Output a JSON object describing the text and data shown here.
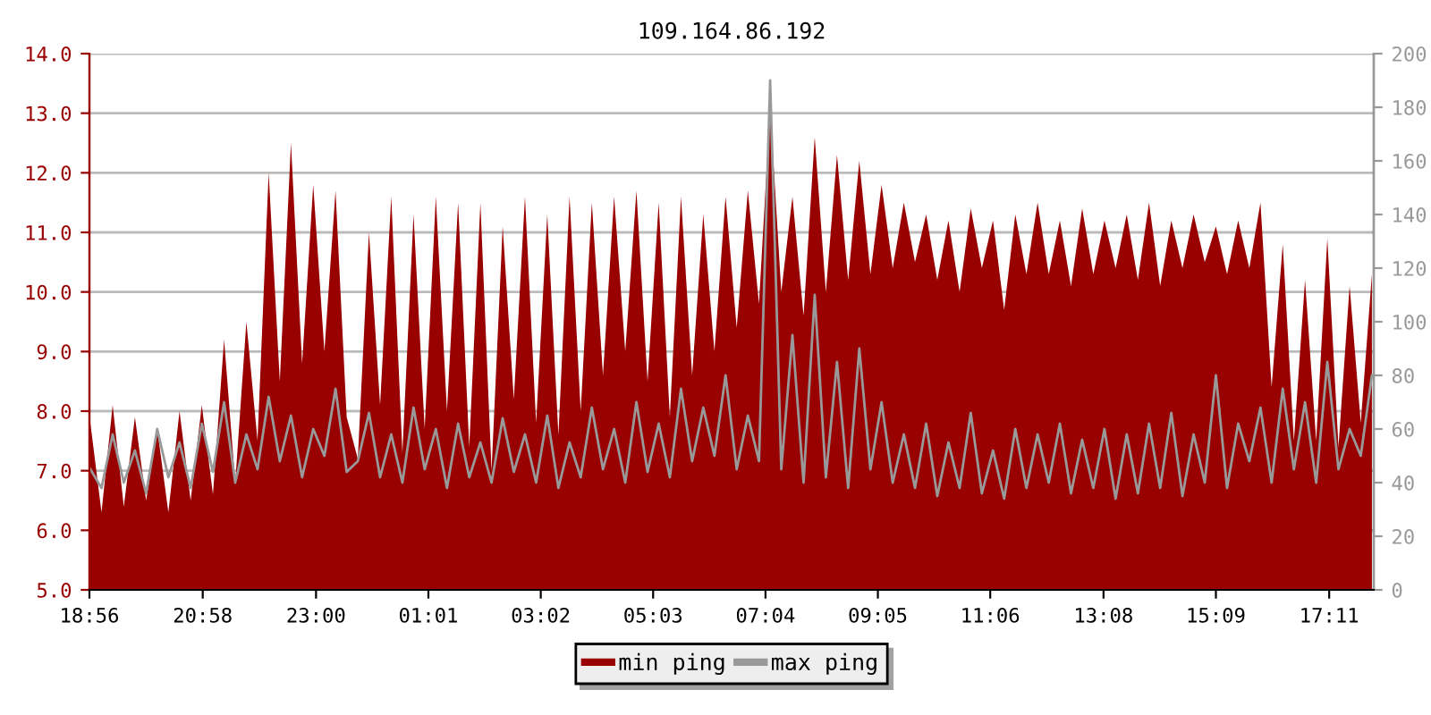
{
  "chart_data": {
    "type": "area",
    "title": "109.164.86.192",
    "x": [
      "2000-01-01T18:57",
      "2000-01-01T19:09",
      "2000-01-01T19:21",
      "2000-01-01T19:33",
      "2000-01-01T19:45",
      "2000-01-01T19:57",
      "2000-01-01T20:09",
      "2000-01-01T20:21",
      "2000-01-01T20:33",
      "2000-01-01T20:45",
      "2000-01-01T20:57",
      "2000-01-01T21:09",
      "2000-01-01T21:21",
      "2000-01-01T21:33",
      "2000-01-01T21:45",
      "2000-01-01T21:57",
      "2000-01-01T22:09",
      "2000-01-01T22:21",
      "2000-01-01T22:33",
      "2000-01-01T22:45",
      "2000-01-01T22:57",
      "2000-01-01T23:09",
      "2000-01-01T23:21",
      "2000-01-01T23:33",
      "2000-01-01T23:45",
      "2000-01-01T23:57",
      "2000-01-02T00:09",
      "2000-01-02T00:21",
      "2000-01-02T00:33",
      "2000-01-02T00:45",
      "2000-01-02T00:57",
      "2000-01-02T01:09",
      "2000-01-02T01:21",
      "2000-01-02T01:33",
      "2000-01-02T01:45",
      "2000-01-02T01:57",
      "2000-01-02T02:09",
      "2000-01-02T02:21",
      "2000-01-02T02:33",
      "2000-01-02T02:45",
      "2000-01-02T02:57",
      "2000-01-02T03:09",
      "2000-01-02T03:21",
      "2000-01-02T03:33",
      "2000-01-02T03:45",
      "2000-01-02T03:57",
      "2000-01-02T04:09",
      "2000-01-02T04:21",
      "2000-01-02T04:33",
      "2000-01-02T04:45",
      "2000-01-02T04:57",
      "2000-01-02T05:09",
      "2000-01-02T05:21",
      "2000-01-02T05:33",
      "2000-01-02T05:45",
      "2000-01-02T05:57",
      "2000-01-02T06:09",
      "2000-01-02T06:21",
      "2000-01-02T06:33",
      "2000-01-02T06:45",
      "2000-01-02T06:57",
      "2000-01-02T07:09",
      "2000-01-02T07:21",
      "2000-01-02T07:33",
      "2000-01-02T07:45",
      "2000-01-02T07:57",
      "2000-01-02T08:09",
      "2000-01-02T08:21",
      "2000-01-02T08:33",
      "2000-01-02T08:45",
      "2000-01-02T08:57",
      "2000-01-02T09:09",
      "2000-01-02T09:21",
      "2000-01-02T09:33",
      "2000-01-02T09:45",
      "2000-01-02T09:57",
      "2000-01-02T10:09",
      "2000-01-02T10:21",
      "2000-01-02T10:33",
      "2000-01-02T10:45",
      "2000-01-02T10:57",
      "2000-01-02T11:09",
      "2000-01-02T11:21",
      "2000-01-02T11:33",
      "2000-01-02T11:45",
      "2000-01-02T11:57",
      "2000-01-02T12:09",
      "2000-01-02T12:21",
      "2000-01-02T12:33",
      "2000-01-02T12:45",
      "2000-01-02T12:57",
      "2000-01-02T13:09",
      "2000-01-02T13:21",
      "2000-01-02T13:33",
      "2000-01-02T13:45",
      "2000-01-02T13:57",
      "2000-01-02T14:09",
      "2000-01-02T14:21",
      "2000-01-02T14:33",
      "2000-01-02T14:45",
      "2000-01-02T14:57",
      "2000-01-02T15:09",
      "2000-01-02T15:21",
      "2000-01-02T15:33",
      "2000-01-02T15:45",
      "2000-01-02T15:57",
      "2000-01-02T16:09",
      "2000-01-02T16:21",
      "2000-01-02T16:33",
      "2000-01-02T16:45",
      "2000-01-02T16:57",
      "2000-01-02T17:09",
      "2000-01-02T17:21",
      "2000-01-02T17:33",
      "2000-01-02T17:45",
      "2000-01-02T17:57"
    ],
    "series": [
      {
        "name": "min ping",
        "color": "#990000",
        "values": [
          7.8,
          6.3,
          8.1,
          6.4,
          7.9,
          6.5,
          7.7,
          6.3,
          8.0,
          6.5,
          8.1,
          6.6,
          9.2,
          6.8,
          9.5,
          7.5,
          12.0,
          8.5,
          12.5,
          8.8,
          11.8,
          9.0,
          11.7,
          7.9,
          7.2,
          11.0,
          8.1,
          11.6,
          7.3,
          11.3,
          7.7,
          11.6,
          8.0,
          11.5,
          7.4,
          11.5,
          7.0,
          11.1,
          8.2,
          11.6,
          7.8,
          11.3,
          7.6,
          11.6,
          8.0,
          11.5,
          8.6,
          11.6,
          9.0,
          11.7,
          8.5,
          11.5,
          7.9,
          11.6,
          8.6,
          11.3,
          9.0,
          11.6,
          9.4,
          11.7,
          9.8,
          13.1,
          10.0,
          11.6,
          9.6,
          12.6,
          10.0,
          12.3,
          10.2,
          12.2,
          10.3,
          11.8,
          10.4,
          11.5,
          10.5,
          11.3,
          10.2,
          11.2,
          10.0,
          11.4,
          10.4,
          11.2,
          9.7,
          11.3,
          10.3,
          11.5,
          10.3,
          11.2,
          10.1,
          11.4,
          10.3,
          11.2,
          10.4,
          11.3,
          10.2,
          11.5,
          10.1,
          11.2,
          10.4,
          11.3,
          10.5,
          11.1,
          10.3,
          11.2,
          10.4,
          11.5,
          8.4,
          10.8,
          7.5,
          10.2,
          7.5,
          10.9,
          7.4,
          10.1,
          7.8,
          10.3
        ]
      },
      {
        "name": "max ping",
        "type": "line",
        "axis": "y2",
        "color": "#999999",
        "values": [
          45,
          38,
          58,
          40,
          52,
          36,
          60,
          42,
          55,
          38,
          62,
          44,
          70,
          40,
          58,
          45,
          72,
          48,
          65,
          42,
          60,
          50,
          75,
          44,
          48,
          66,
          42,
          58,
          40,
          68,
          45,
          60,
          38,
          62,
          42,
          55,
          40,
          64,
          44,
          58,
          40,
          65,
          38,
          55,
          42,
          68,
          45,
          60,
          40,
          70,
          44,
          62,
          42,
          75,
          48,
          68,
          50,
          80,
          45,
          65,
          48,
          190,
          45,
          95,
          40,
          110,
          42,
          85,
          38,
          90,
          45,
          70,
          40,
          58,
          38,
          62,
          35,
          55,
          38,
          66,
          36,
          52,
          34,
          60,
          38,
          58,
          40,
          62,
          36,
          56,
          38,
          60,
          34,
          58,
          36,
          62,
          38,
          66,
          35,
          58,
          40,
          80,
          38,
          62,
          48,
          68,
          40,
          75,
          45,
          70,
          40,
          85,
          45,
          60,
          50,
          80
        ]
      }
    ],
    "xlim": [
      "2000-01-01T18:56",
      "2000-01-02T17:59"
    ],
    "xticks": [
      {
        "value": "2000-01-01T18:56",
        "label": "18:56"
      },
      {
        "value": "2000-01-01T20:58",
        "label": "20:58"
      },
      {
        "value": "2000-01-01T23:00",
        "label": "23:00"
      },
      {
        "value": "2000-01-02T01:01",
        "label": "01:01"
      },
      {
        "value": "2000-01-02T03:02",
        "label": "03:02"
      },
      {
        "value": "2000-01-02T05:03",
        "label": "05:03"
      },
      {
        "value": "2000-01-02T07:04",
        "label": "07:04"
      },
      {
        "value": "2000-01-02T09:05",
        "label": "09:05"
      },
      {
        "value": "2000-01-02T11:06",
        "label": "11:06"
      },
      {
        "value": "2000-01-02T13:08",
        "label": "13:08"
      },
      {
        "value": "2000-01-02T15:09",
        "label": "15:09"
      },
      {
        "value": "2000-01-02T17:11",
        "label": "17:11"
      }
    ],
    "ylim": [
      5,
      14
    ],
    "yticks": [
      {
        "value": 5,
        "label": "5.0"
      },
      {
        "value": 6,
        "label": "6.0"
      },
      {
        "value": 7,
        "label": "7.0"
      },
      {
        "value": 8,
        "label": "8.0"
      },
      {
        "value": 9,
        "label": "9.0"
      },
      {
        "value": 10,
        "label": "10.0"
      },
      {
        "value": 11,
        "label": "11.0"
      },
      {
        "value": 12,
        "label": "12.0"
      },
      {
        "value": 13,
        "label": "13.0"
      },
      {
        "value": 14,
        "label": "14.0"
      }
    ],
    "y2lim": [
      0,
      200
    ],
    "y2ticks": [
      0,
      20,
      40,
      60,
      80,
      100,
      120,
      140,
      160,
      180,
      200
    ],
    "grid": "y",
    "legend": "bottom"
  }
}
